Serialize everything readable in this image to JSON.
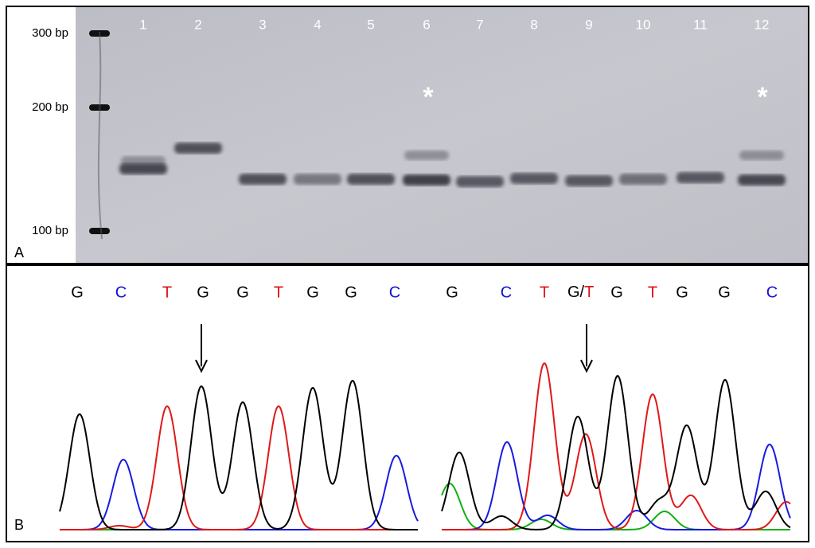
{
  "panel_a": {
    "label": "A",
    "ladder": [
      "300 bp",
      "200 bp",
      "100 bp"
    ],
    "lanes": [
      "1",
      "2",
      "3",
      "4",
      "5",
      "6",
      "7",
      "8",
      "9",
      "10",
      "11",
      "12"
    ],
    "asterisks": [
      "*",
      "*"
    ]
  },
  "panel_b": {
    "label": "B",
    "left_sequence": [
      "G",
      "C",
      "T",
      "G",
      "G",
      "T",
      "G",
      "G",
      "C"
    ],
    "right_sequence": [
      "G",
      "C",
      "T",
      [
        "G/",
        "T"
      ],
      "G",
      "T",
      "G",
      "G",
      "C"
    ]
  }
}
